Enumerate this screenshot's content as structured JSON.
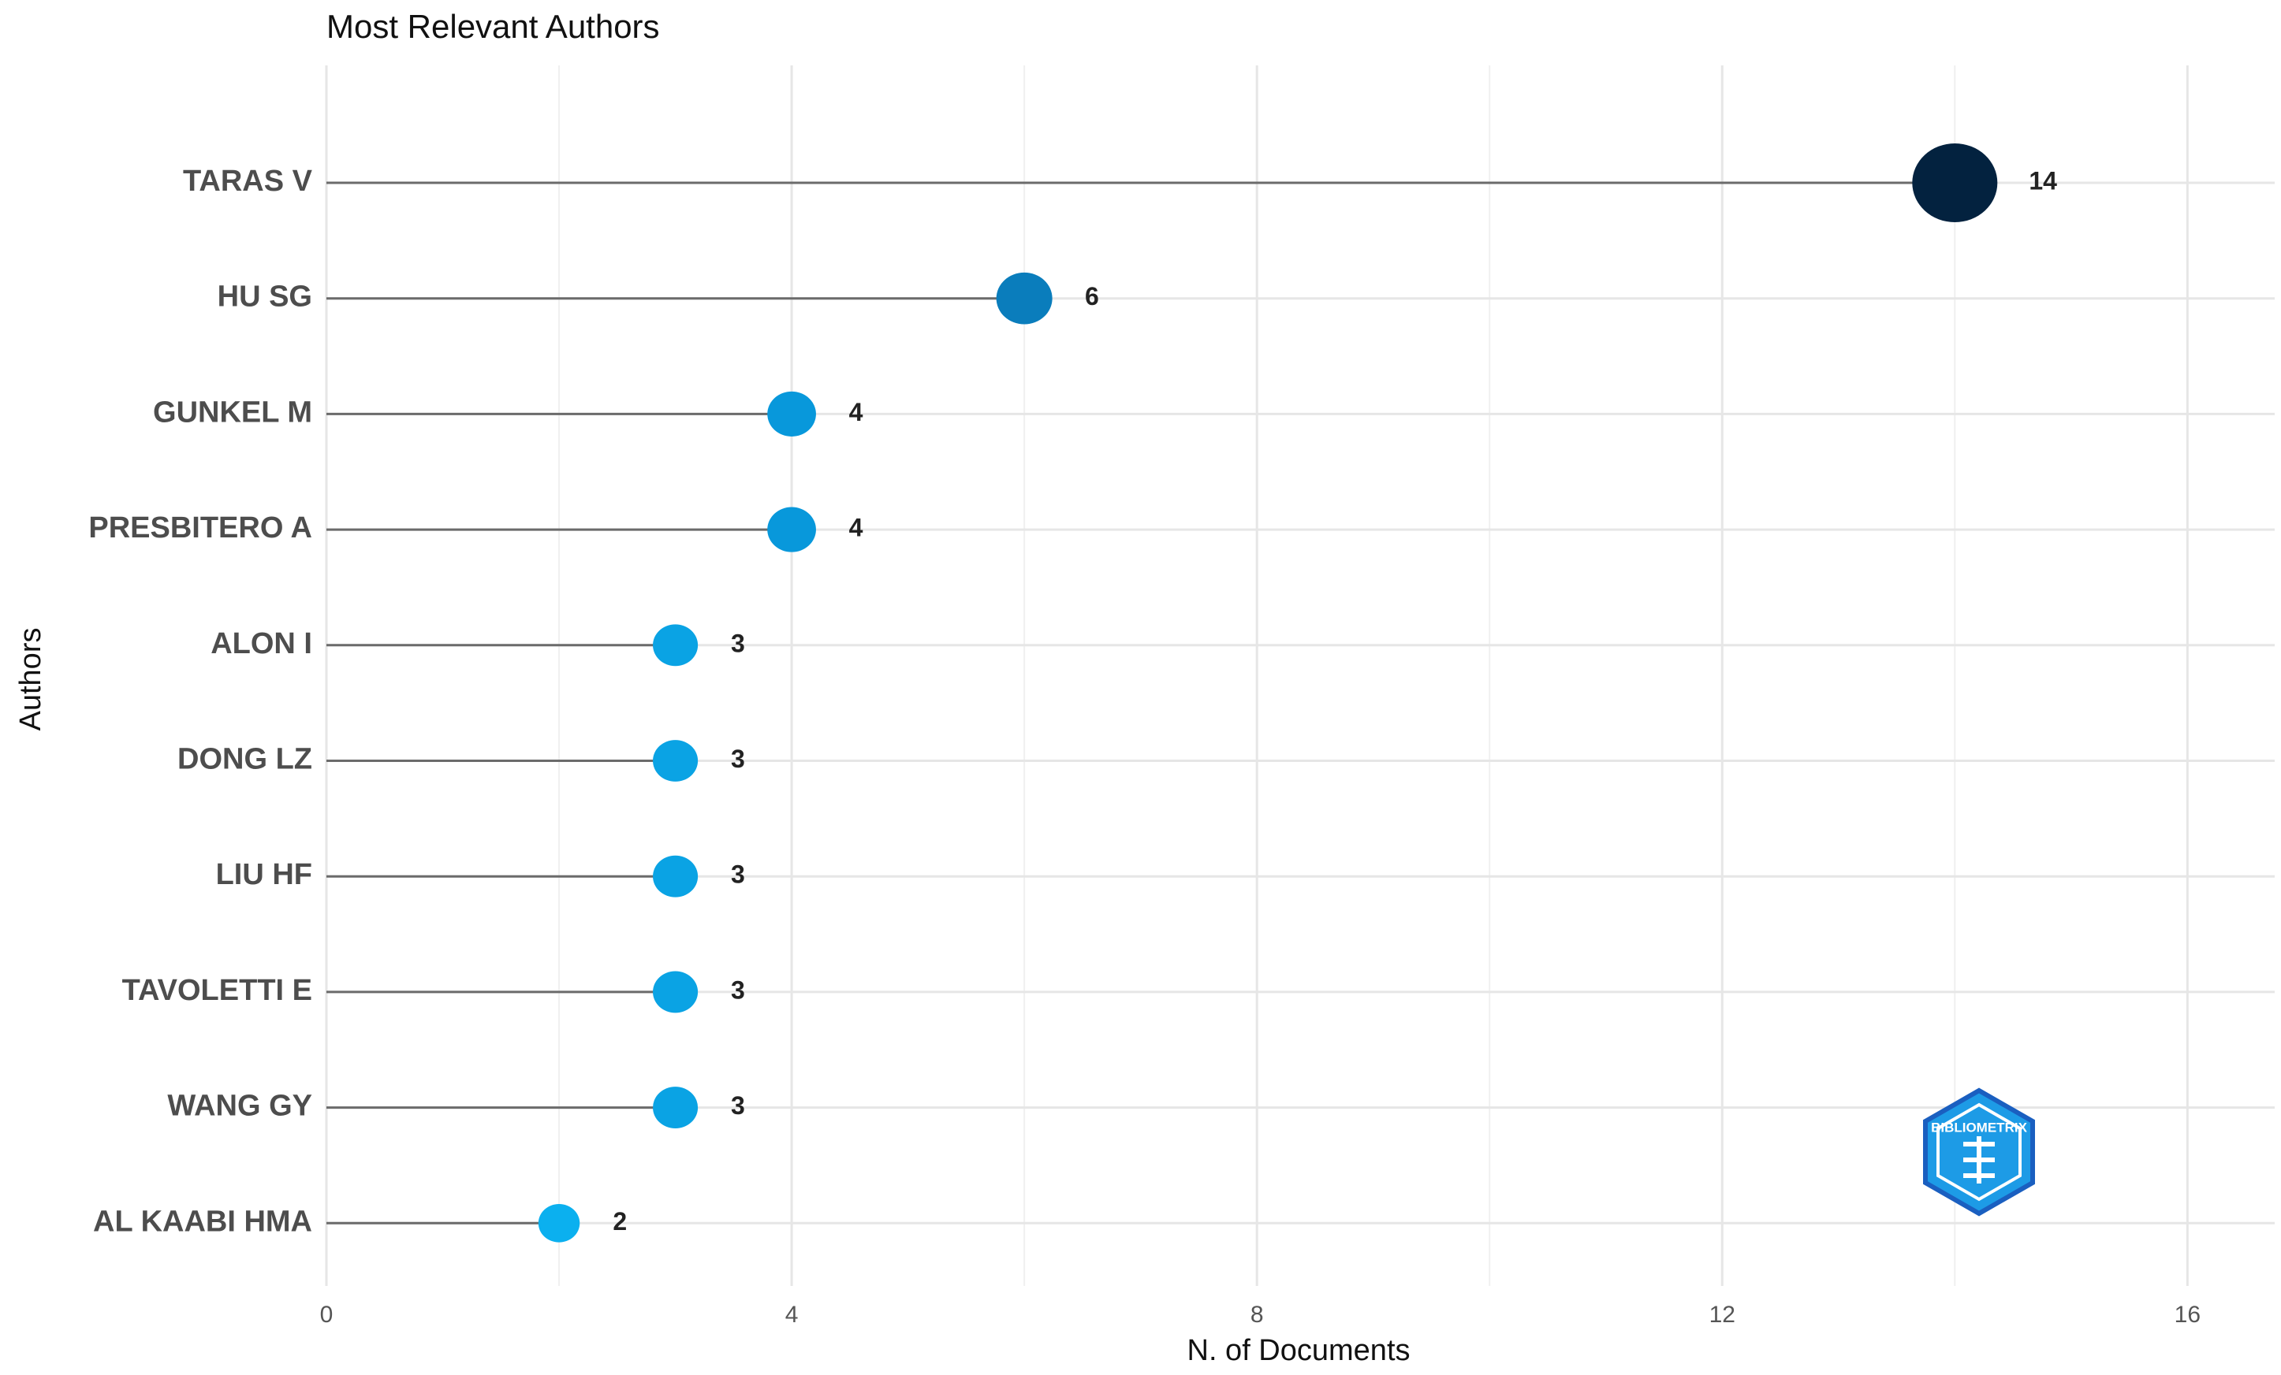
{
  "chart_data": {
    "type": "lollipop",
    "title": "Most Relevant Authors",
    "x_label": "N. of Documents",
    "y_label": "Authors",
    "categories": [
      "TARAS V",
      "HU SG",
      "GUNKEL M",
      "PRESBITERO A",
      "ALON I",
      "DONG LZ",
      "LIU HF",
      "TAVOLETTI E",
      "WANG GY",
      "AL KAABI HMA"
    ],
    "values": [
      14,
      6,
      4,
      4,
      3,
      3,
      3,
      3,
      3,
      2
    ],
    "colors": [
      "#03223f",
      "#0a7dbc",
      "#0898db",
      "#0898db",
      "#0aa3e4",
      "#0aa3e4",
      "#0aa3e4",
      "#0aa3e4",
      "#0aa3e4",
      "#0bb0ef"
    ],
    "stem_color": "#6b6b6b",
    "xlim": [
      0,
      16.75
    ],
    "xticks": [
      0,
      4,
      8,
      12,
      16
    ],
    "x_minor_grid": [
      2,
      6,
      10,
      14
    ],
    "grid": true,
    "logo_text": "BIBLIOMETRIX"
  }
}
